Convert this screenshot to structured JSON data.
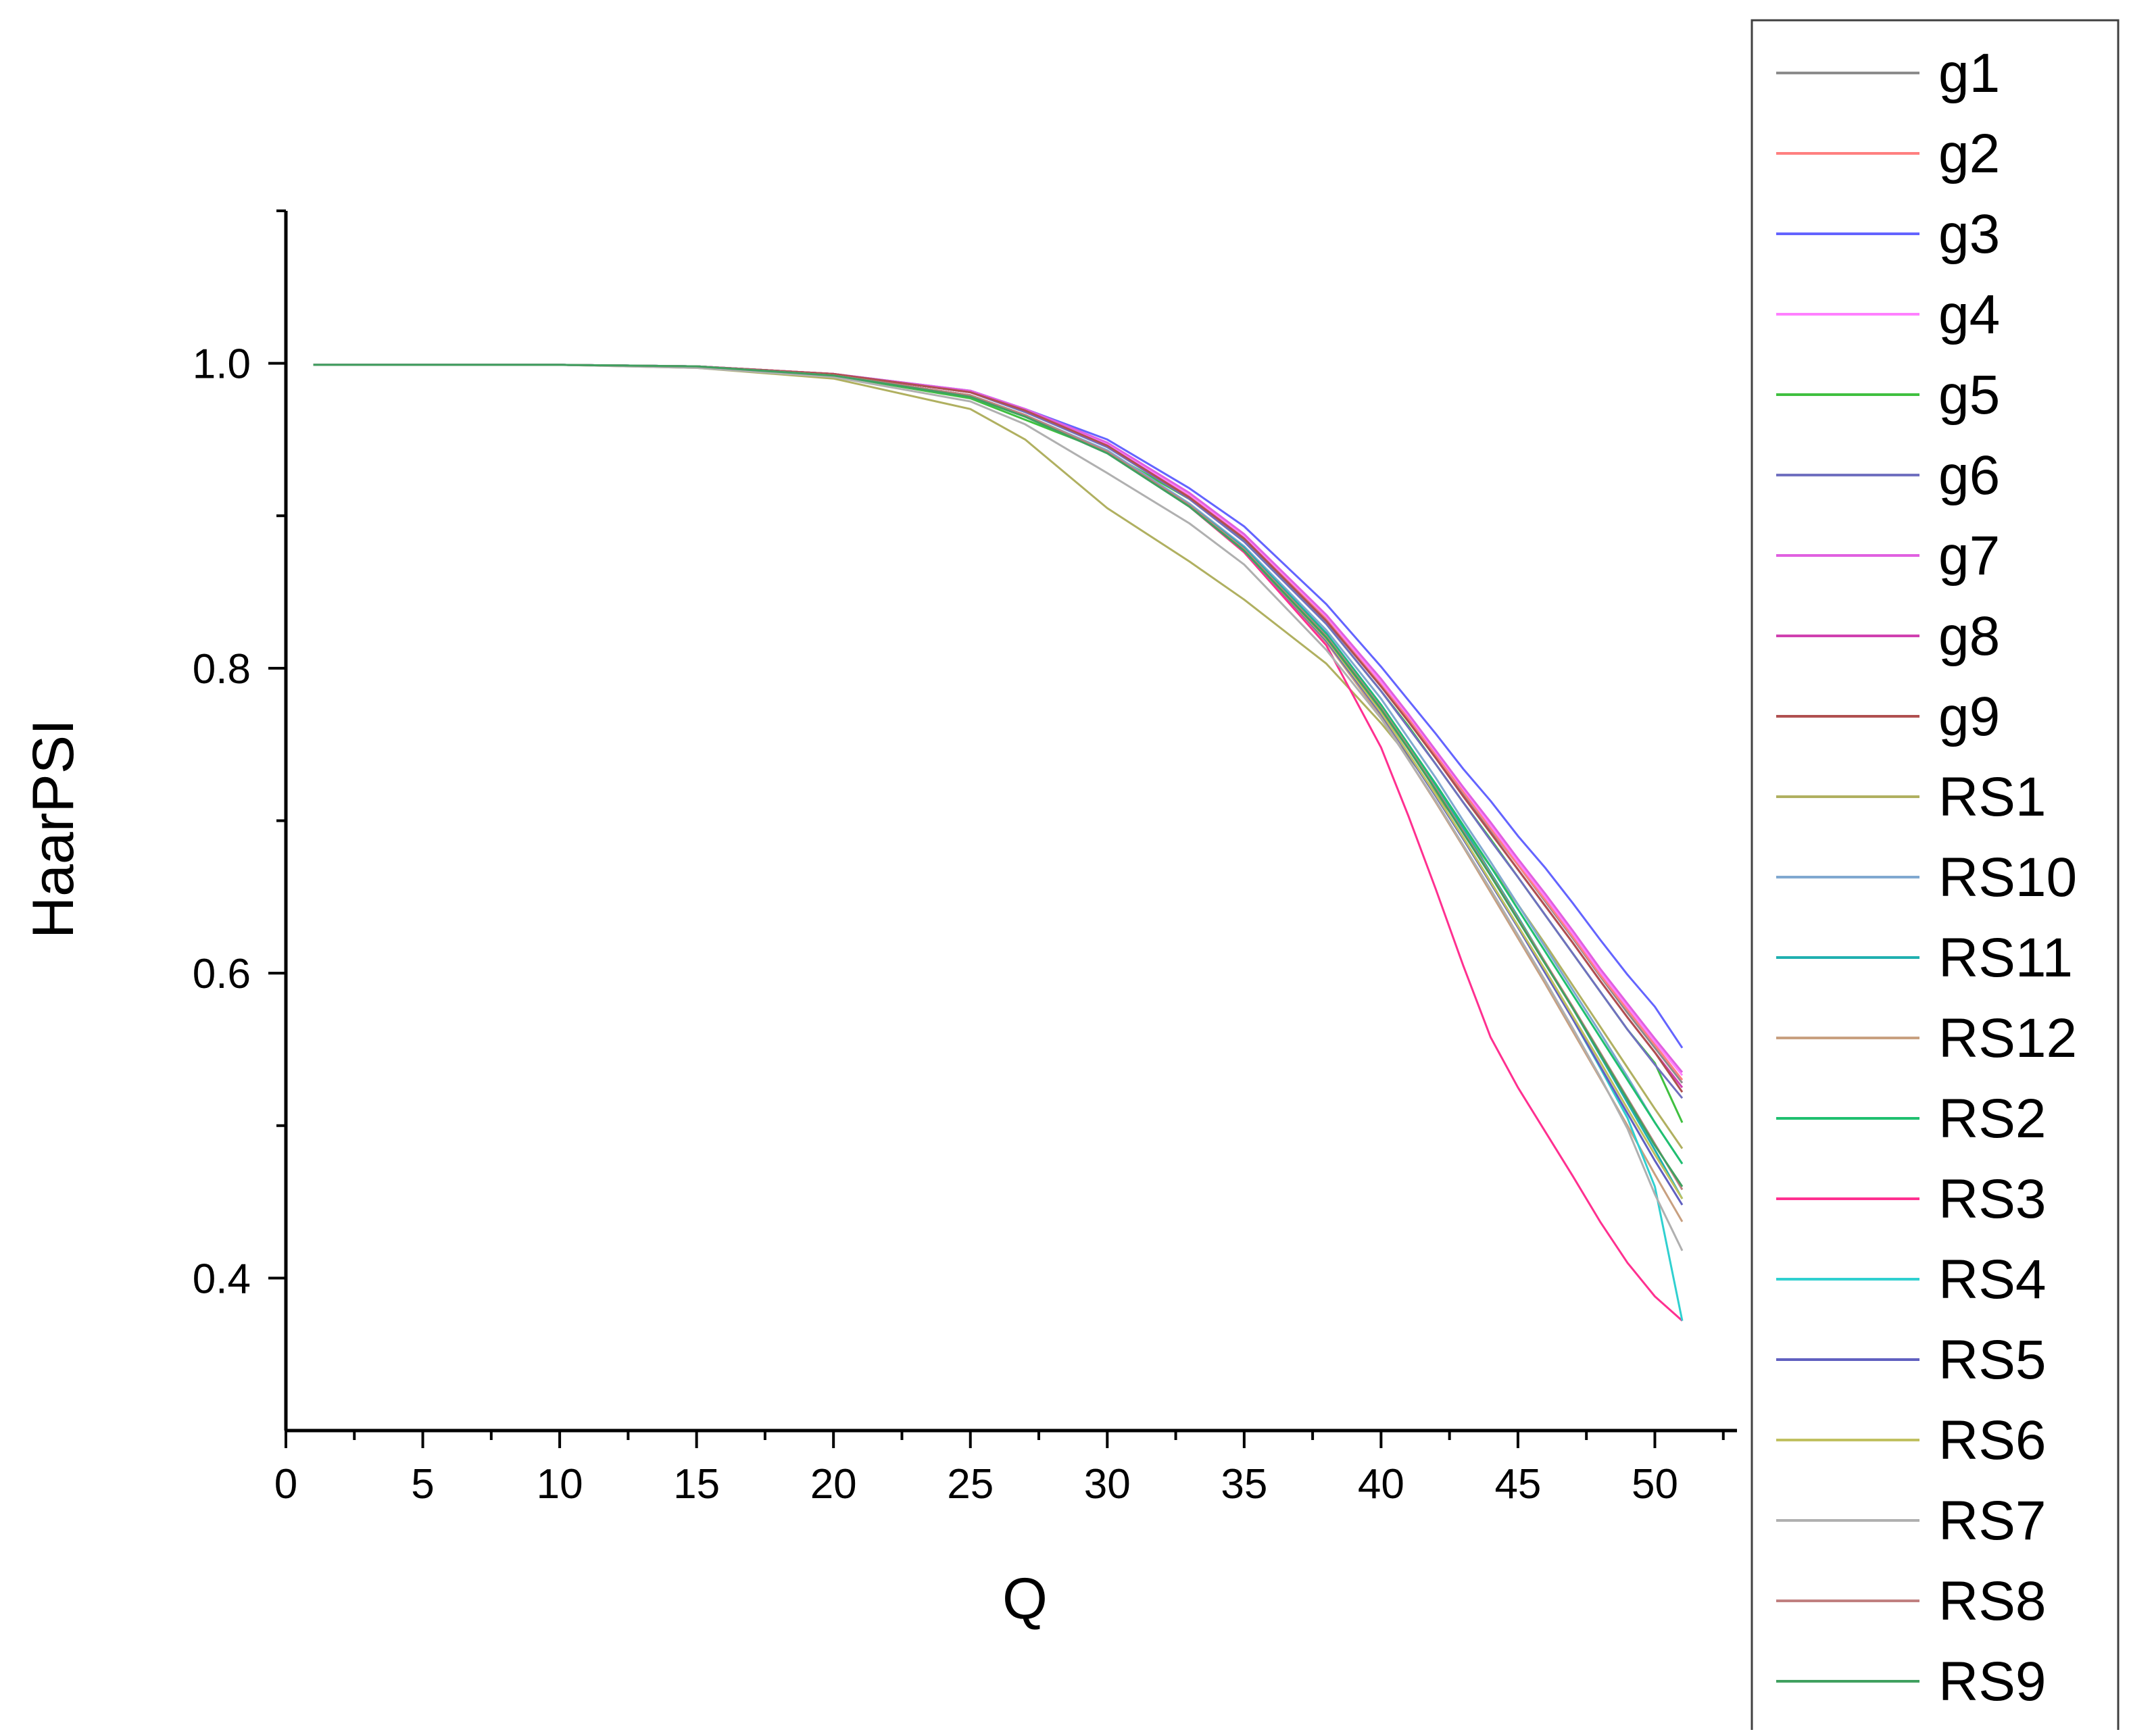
{
  "chart_data": {
    "type": "line",
    "title": "",
    "xlabel": "Q",
    "ylabel": "HaarPSI",
    "xlim": [
      0,
      53
    ],
    "ylim": [
      0.3,
      1.1
    ],
    "x_ticks": [
      0,
      5,
      10,
      15,
      20,
      25,
      30,
      35,
      40,
      45,
      50
    ],
    "x_tick_labels": [
      "0",
      "5",
      "10",
      "15",
      "20",
      "25",
      "30",
      "35",
      "40",
      "45",
      "50"
    ],
    "y_ticks": [
      0.4,
      0.6,
      0.8,
      1.0
    ],
    "y_tick_labels": [
      "0.4",
      "0.6",
      "0.8",
      "1.0"
    ],
    "grid": false,
    "legend_position": "right",
    "x": [
      1,
      5,
      10,
      15,
      20,
      25,
      27,
      30,
      33,
      35,
      38,
      40,
      41,
      42,
      43,
      44,
      45,
      46,
      47,
      48,
      49,
      50,
      51
    ],
    "series": [
      {
        "name": "g1",
        "color": "#8c8c8c",
        "values": [
          0.999,
          0.999,
          0.999,
          0.998,
          0.993,
          0.981,
          0.968,
          0.946,
          0.913,
          0.885,
          0.832,
          0.789,
          0.766,
          0.742,
          0.718,
          0.694,
          0.671,
          0.647,
          0.623,
          0.598,
          0.574,
          0.551,
          0.528
        ]
      },
      {
        "name": "g2",
        "color": "#ff8080",
        "values": [
          0.999,
          0.999,
          0.999,
          0.998,
          0.993,
          0.981,
          0.969,
          0.947,
          0.913,
          0.886,
          0.833,
          0.79,
          0.767,
          0.743,
          0.719,
          0.695,
          0.671,
          0.648,
          0.624,
          0.599,
          0.576,
          0.553,
          0.53
        ]
      },
      {
        "name": "g3",
        "color": "#6464ff",
        "values": [
          0.999,
          0.999,
          0.999,
          0.998,
          0.993,
          0.982,
          0.97,
          0.95,
          0.918,
          0.893,
          0.842,
          0.801,
          0.779,
          0.757,
          0.734,
          0.713,
          0.69,
          0.669,
          0.646,
          0.622,
          0.599,
          0.578,
          0.551
        ]
      },
      {
        "name": "g4",
        "color": "#ff80ff",
        "values": [
          0.999,
          0.999,
          0.999,
          0.998,
          0.993,
          0.981,
          0.969,
          0.947,
          0.914,
          0.887,
          0.834,
          0.791,
          0.769,
          0.745,
          0.721,
          0.697,
          0.673,
          0.65,
          0.626,
          0.601,
          0.578,
          0.555,
          0.533
        ]
      },
      {
        "name": "g5",
        "color": "#40c040",
        "values": [
          0.999,
          0.999,
          0.999,
          0.998,
          0.992,
          0.977,
          0.963,
          0.942,
          0.911,
          0.884,
          0.829,
          0.785,
          0.762,
          0.737,
          0.712,
          0.688,
          0.663,
          0.638,
          0.613,
          0.588,
          0.563,
          0.541,
          0.502
        ]
      },
      {
        "name": "g6",
        "color": "#7070c0",
        "values": [
          0.999,
          0.999,
          0.999,
          0.998,
          0.993,
          0.981,
          0.968,
          0.945,
          0.911,
          0.883,
          0.829,
          0.785,
          0.761,
          0.737,
          0.712,
          0.687,
          0.663,
          0.638,
          0.613,
          0.588,
          0.563,
          0.54,
          0.518
        ]
      },
      {
        "name": "g7",
        "color": "#e060e0",
        "values": [
          0.999,
          0.999,
          0.999,
          0.998,
          0.993,
          0.982,
          0.97,
          0.948,
          0.915,
          0.888,
          0.835,
          0.793,
          0.77,
          0.746,
          0.722,
          0.699,
          0.675,
          0.652,
          0.628,
          0.603,
          0.58,
          0.557,
          0.535
        ]
      },
      {
        "name": "g8",
        "color": "#d040b0",
        "values": [
          0.999,
          0.999,
          0.999,
          0.998,
          0.993,
          0.981,
          0.969,
          0.946,
          0.912,
          0.885,
          0.831,
          0.788,
          0.765,
          0.741,
          0.716,
          0.692,
          0.668,
          0.644,
          0.62,
          0.595,
          0.571,
          0.548,
          0.525
        ]
      },
      {
        "name": "g9",
        "color": "#b05050",
        "values": [
          0.999,
          0.999,
          0.999,
          0.998,
          0.993,
          0.981,
          0.969,
          0.946,
          0.912,
          0.885,
          0.831,
          0.788,
          0.765,
          0.741,
          0.716,
          0.692,
          0.668,
          0.644,
          0.62,
          0.595,
          0.571,
          0.548,
          0.522
        ]
      },
      {
        "name": "RS1",
        "color": "#b0b060",
        "values": [
          0.999,
          0.999,
          0.999,
          0.997,
          0.99,
          0.97,
          0.95,
          0.905,
          0.87,
          0.845,
          0.803,
          0.764,
          0.742,
          0.718,
          0.694,
          0.67,
          0.645,
          0.619,
          0.592,
          0.565,
          0.538,
          0.511,
          0.485
        ]
      },
      {
        "name": "RS10",
        "color": "#80a8d0",
        "values": [
          0.999,
          0.999,
          0.999,
          0.998,
          0.992,
          0.979,
          0.966,
          0.943,
          0.908,
          0.88,
          0.825,
          0.78,
          0.754,
          0.728,
          0.7,
          0.673,
          0.645,
          0.617,
          0.589,
          0.561,
          0.532,
          0.502,
          0.475
        ]
      },
      {
        "name": "RS11",
        "color": "#20b0b0",
        "values": [
          0.999,
          0.999,
          0.999,
          0.998,
          0.992,
          0.979,
          0.966,
          0.942,
          0.907,
          0.879,
          0.823,
          0.776,
          0.75,
          0.723,
          0.695,
          0.666,
          0.637,
          0.607,
          0.577,
          0.546,
          0.515,
          0.484,
          0.452
        ]
      },
      {
        "name": "RS12",
        "color": "#c8a080",
        "values": [
          0.999,
          0.999,
          0.999,
          0.998,
          0.992,
          0.979,
          0.966,
          0.942,
          0.906,
          0.876,
          0.817,
          0.768,
          0.74,
          0.712,
          0.683,
          0.653,
          0.623,
          0.593,
          0.562,
          0.531,
          0.5,
          0.468,
          0.437
        ]
      },
      {
        "name": "RS2",
        "color": "#20c070",
        "values": [
          0.999,
          0.999,
          0.999,
          0.998,
          0.992,
          0.978,
          0.965,
          0.941,
          0.906,
          0.878,
          0.822,
          0.776,
          0.75,
          0.724,
          0.697,
          0.67,
          0.642,
          0.614,
          0.586,
          0.558,
          0.53,
          0.502,
          0.475
        ]
      },
      {
        "name": "RS3",
        "color": "#ff3090",
        "values": [
          0.999,
          0.999,
          0.999,
          0.998,
          0.992,
          0.979,
          0.966,
          0.942,
          0.906,
          0.876,
          0.815,
          0.748,
          0.703,
          0.655,
          0.605,
          0.558,
          0.525,
          0.496,
          0.467,
          0.437,
          0.41,
          0.388,
          0.372
        ]
      },
      {
        "name": "RS4",
        "color": "#30d0d0",
        "values": [
          0.999,
          0.999,
          0.999,
          0.998,
          0.992,
          0.979,
          0.966,
          0.942,
          0.906,
          0.877,
          0.819,
          0.771,
          0.744,
          0.717,
          0.689,
          0.66,
          0.631,
          0.601,
          0.57,
          0.538,
          0.505,
          0.46,
          0.372
        ]
      },
      {
        "name": "RS5",
        "color": "#6060c0",
        "values": [
          0.999,
          0.999,
          0.999,
          0.998,
          0.992,
          0.979,
          0.966,
          0.942,
          0.906,
          0.877,
          0.818,
          0.77,
          0.743,
          0.716,
          0.688,
          0.659,
          0.63,
          0.6,
          0.57,
          0.539,
          0.508,
          0.477,
          0.448
        ]
      },
      {
        "name": "RS6",
        "color": "#c0c060",
        "values": [
          0.999,
          0.999,
          0.999,
          0.998,
          0.992,
          0.979,
          0.966,
          0.942,
          0.906,
          0.877,
          0.819,
          0.771,
          0.744,
          0.717,
          0.689,
          0.66,
          0.631,
          0.602,
          0.572,
          0.542,
          0.511,
          0.481,
          0.452
        ]
      },
      {
        "name": "RS7",
        "color": "#b0b0b0",
        "values": [
          0.999,
          0.999,
          0.999,
          0.997,
          0.991,
          0.975,
          0.96,
          0.928,
          0.895,
          0.868,
          0.812,
          0.767,
          0.74,
          0.713,
          0.684,
          0.655,
          0.625,
          0.595,
          0.564,
          0.532,
          0.498,
          0.455,
          0.418
        ]
      },
      {
        "name": "RS8",
        "color": "#c08080",
        "values": [
          0.999,
          0.999,
          0.999,
          0.998,
          0.992,
          0.979,
          0.966,
          0.942,
          0.907,
          0.878,
          0.821,
          0.774,
          0.748,
          0.721,
          0.693,
          0.665,
          0.636,
          0.607,
          0.578,
          0.548,
          0.518,
          0.488,
          0.458
        ]
      },
      {
        "name": "RS9",
        "color": "#40a060",
        "values": [
          0.999,
          0.999,
          0.999,
          0.998,
          0.992,
          0.978,
          0.965,
          0.941,
          0.906,
          0.877,
          0.82,
          0.773,
          0.747,
          0.72,
          0.692,
          0.664,
          0.635,
          0.606,
          0.577,
          0.547,
          0.517,
          0.487,
          0.46
        ]
      }
    ]
  }
}
